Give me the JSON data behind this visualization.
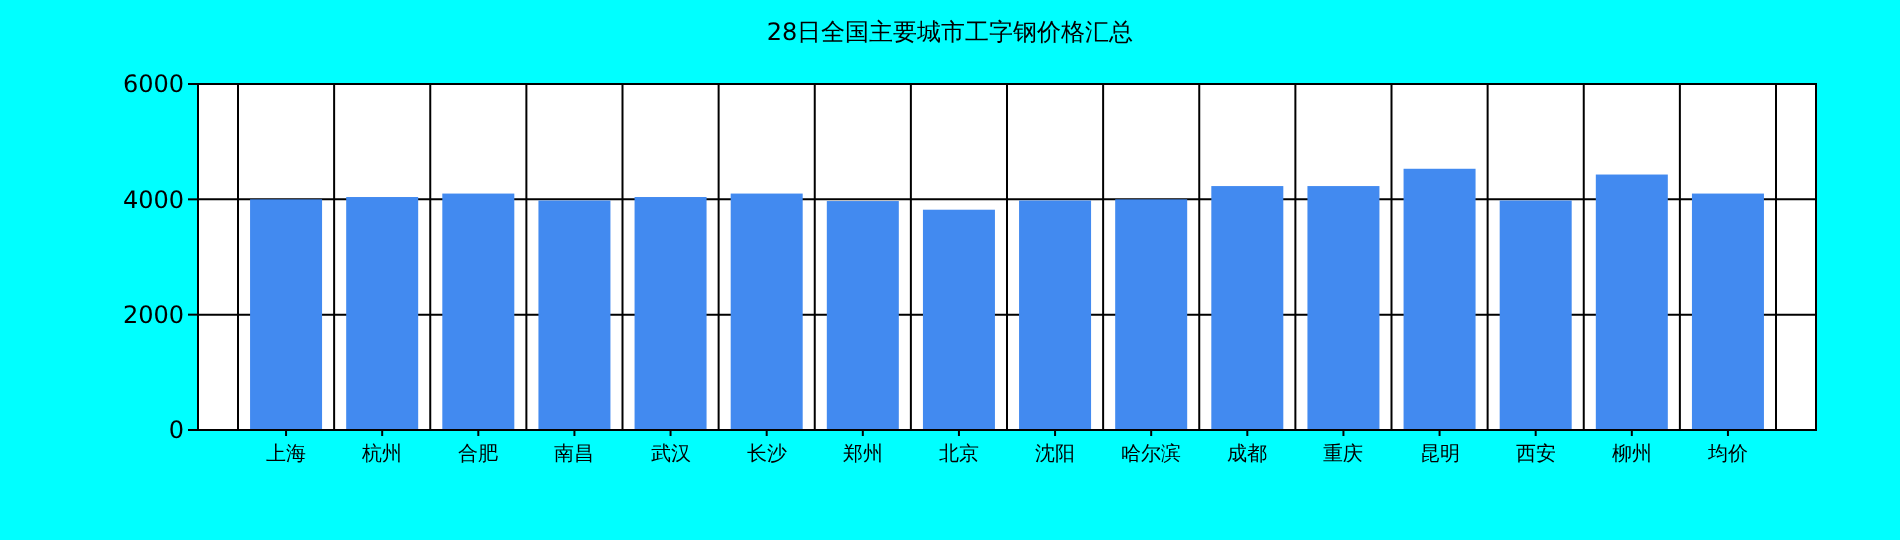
{
  "chart_data": {
    "type": "bar",
    "title": "28日全国主要城市工字钢价格汇总",
    "categories": [
      "上海",
      "杭州",
      "合肥",
      "南昌",
      "武汉",
      "长沙",
      "郑州",
      "北京",
      "沈阳",
      "哈尔滨",
      "成都",
      "重庆",
      "昆明",
      "西安",
      "柳州",
      "均价"
    ],
    "values": [
      4000,
      4040,
      4100,
      3980,
      4040,
      4100,
      3970,
      3820,
      3980,
      4000,
      4230,
      4230,
      4530,
      3980,
      4430,
      4100
    ],
    "color": "#428af0",
    "ylim": [
      0,
      6000
    ],
    "yticks": [
      0,
      2000,
      4000,
      6000
    ],
    "grid": true
  }
}
